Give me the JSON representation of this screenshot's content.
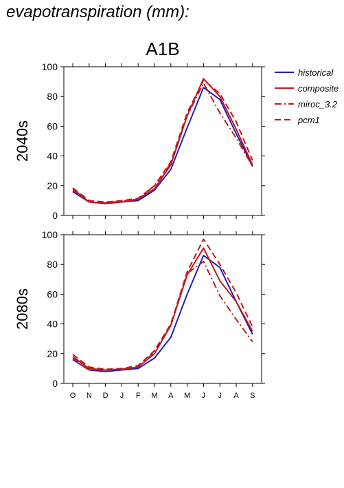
{
  "page_title": "evapotranspiration (mm):",
  "colors": {
    "historical": "#1f1fb8",
    "scenario": "#c0181c",
    "axis": "#000000"
  },
  "chart_data": [
    {
      "type": "line",
      "title": "A1B",
      "ylabel": "2040s",
      "xlabel": "",
      "ylim": [
        0,
        100
      ],
      "yticks": [
        0,
        20,
        40,
        60,
        80,
        100
      ],
      "grid": false,
      "legend_position": "right",
      "categories": [
        "O",
        "N",
        "D",
        "J",
        "F",
        "M",
        "A",
        "M",
        "J",
        "J",
        "A",
        "S"
      ],
      "series": [
        {
          "name": "historical",
          "color": "#1f1fb8",
          "dash": "solid",
          "values": [
            16,
            9,
            8,
            9,
            10,
            17,
            31,
            59,
            86,
            78,
            55,
            33
          ]
        },
        {
          "name": "composite",
          "color": "#c0181c",
          "dash": "solid",
          "values": [
            18,
            9,
            8.5,
            9,
            11,
            18,
            34,
            67,
            92,
            80,
            58,
            34
          ]
        },
        {
          "name": "miroc_3.2",
          "color": "#c0181c",
          "dash": "dashdot",
          "values": [
            17,
            9,
            8.5,
            9.5,
            11,
            20,
            35,
            67,
            89,
            69,
            52,
            33
          ]
        },
        {
          "name": "pcm1",
          "color": "#c0181c",
          "dash": "dashed",
          "values": [
            18.5,
            10,
            9,
            10,
            11.5,
            20,
            36,
            69,
            91,
            82,
            63,
            37
          ]
        }
      ]
    },
    {
      "type": "line",
      "title": "",
      "ylabel": "2080s",
      "xlabel": "",
      "ylim": [
        0,
        100
      ],
      "yticks": [
        0,
        20,
        40,
        60,
        80,
        100
      ],
      "grid": false,
      "categories": [
        "O",
        "N",
        "D",
        "J",
        "F",
        "M",
        "A",
        "M",
        "J",
        "J",
        "A",
        "S"
      ],
      "series": [
        {
          "name": "historical",
          "color": "#1f1fb8",
          "dash": "solid",
          "values": [
            16,
            9,
            8,
            9,
            10,
            17,
            31,
            60,
            86,
            78,
            55,
            33
          ]
        },
        {
          "name": "composite",
          "color": "#c0181c",
          "dash": "solid",
          "values": [
            18,
            10,
            9,
            9.5,
            11,
            20,
            39,
            73,
            91,
            69,
            55,
            35
          ]
        },
        {
          "name": "miroc_3.2",
          "color": "#c0181c",
          "dash": "dashdot",
          "values": [
            17,
            9,
            9,
            9.5,
            11,
            21,
            39,
            74,
            82,
            59,
            43,
            28
          ]
        },
        {
          "name": "pcm1",
          "color": "#c0181c",
          "dash": "dashed",
          "values": [
            19.5,
            11,
            9.5,
            10,
            12,
            22,
            40,
            75,
            97,
            80,
            61,
            38
          ]
        }
      ]
    }
  ]
}
